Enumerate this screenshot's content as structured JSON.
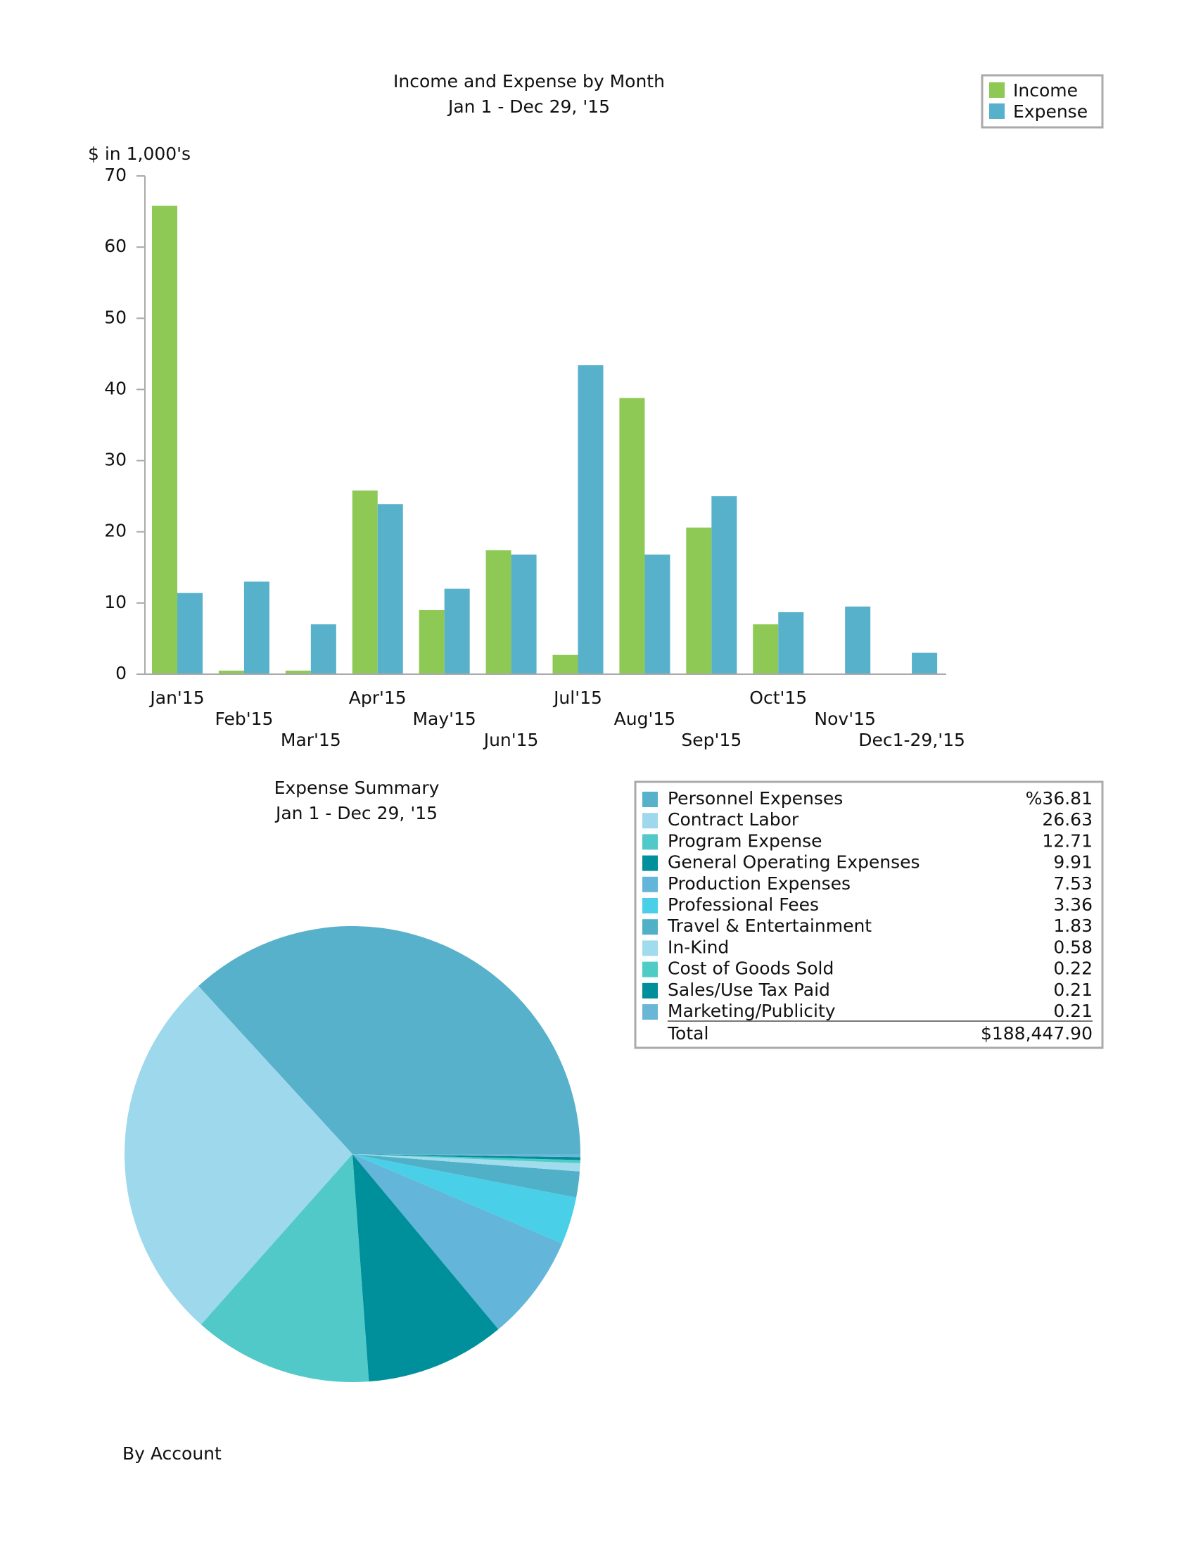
{
  "chart_data": [
    {
      "type": "bar",
      "title": "Income and Expense by Month",
      "subtitle": "Jan 1 - Dec 29, '15",
      "y_label": "$ in 1,000's",
      "categories": [
        "Jan'15",
        "Feb'15",
        "Mar'15",
        "Apr'15",
        "May'15",
        "Jun'15",
        "Jul'15",
        "Aug'15",
        "Sep'15",
        "Oct'15",
        "Nov'15",
        "Dec1-29,'15"
      ],
      "series": [
        {
          "name": "Income",
          "color": "#8dc954",
          "values": [
            65.8,
            0.5,
            0.5,
            25.8,
            9,
            17.4,
            2.7,
            38.8,
            20.6,
            7,
            0,
            0
          ]
        },
        {
          "name": "Expense",
          "color": "#57b1cb",
          "values": [
            11.4,
            13,
            7,
            23.9,
            12,
            16.8,
            43.4,
            16.8,
            25,
            8.7,
            9.5,
            3
          ]
        }
      ],
      "ylim": [
        0,
        70
      ],
      "yticks": [
        0,
        10,
        20,
        30,
        40,
        50,
        60,
        70
      ],
      "legend": "top-right"
    },
    {
      "type": "pie",
      "title": "Expense Summary",
      "subtitle": "Jan 1 - Dec 29, '15",
      "categories": [
        "Personnel Expenses",
        "Contract Labor",
        "Program Expense",
        "General Operating Expenses",
        "Production Expenses",
        "Professional Fees",
        "Travel & Entertainment",
        "In-Kind",
        "Cost of Goods Sold",
        "Sales/Use Tax Paid",
        "Marketing/Publicity"
      ],
      "values": [
        36.81,
        26.63,
        12.71,
        9.91,
        7.53,
        3.36,
        1.83,
        0.58,
        0.22,
        0.21,
        0.21
      ],
      "value_labels": [
        "%36.81",
        "26.63",
        "12.71",
        "9.91",
        "7.53",
        "3.36",
        "1.83",
        "0.58",
        "0.22",
        "0.21",
        "0.21"
      ],
      "colors": [
        "#57b1cb",
        "#9dd8ec",
        "#52c9c9",
        "#00909b",
        "#63b5d9",
        "#4acfe9",
        "#50b0c8",
        "#a0dcee",
        "#4fcdc5",
        "#008e9b",
        "#6ab6d6"
      ],
      "total_label": "Total",
      "total": "$188,447.90",
      "footnote": "By Account"
    }
  ]
}
